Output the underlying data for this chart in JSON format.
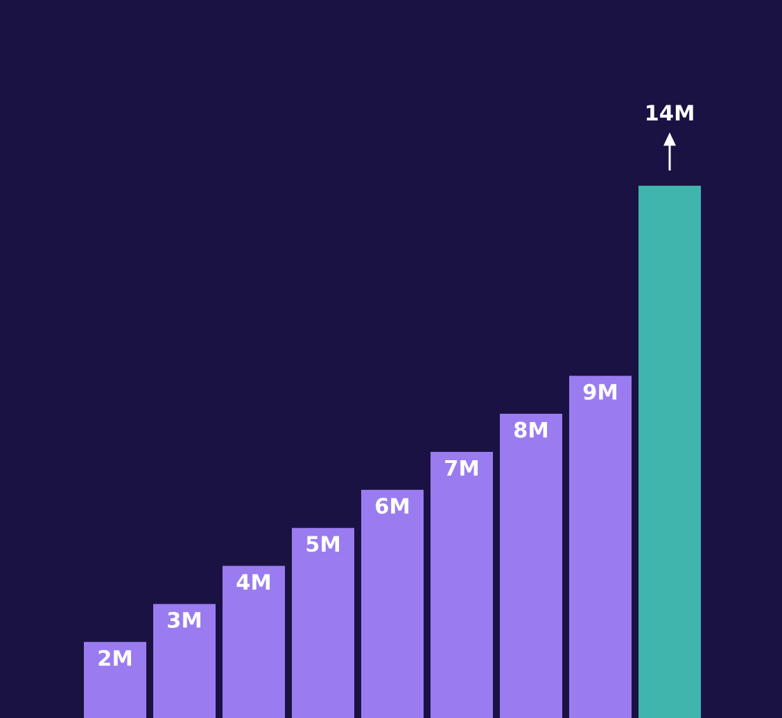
{
  "chart_data": {
    "type": "bar",
    "categories": [
      null,
      null,
      null,
      null,
      null,
      null,
      null,
      null,
      null
    ],
    "values": [
      2,
      3,
      4,
      5,
      6,
      7,
      8,
      9,
      14
    ],
    "value_labels": [
      "2M",
      "3M",
      "4M",
      "5M",
      "6M",
      "7M",
      "8M",
      "9M",
      "14M"
    ],
    "colors": [
      "#9a7cf0",
      "#9a7cf0",
      "#9a7cf0",
      "#9a7cf0",
      "#9a7cf0",
      "#9a7cf0",
      "#9a7cf0",
      "#9a7cf0",
      "#3fb5ad"
    ],
    "tick_labels": false,
    "grid": false,
    "legend": false
  }
}
